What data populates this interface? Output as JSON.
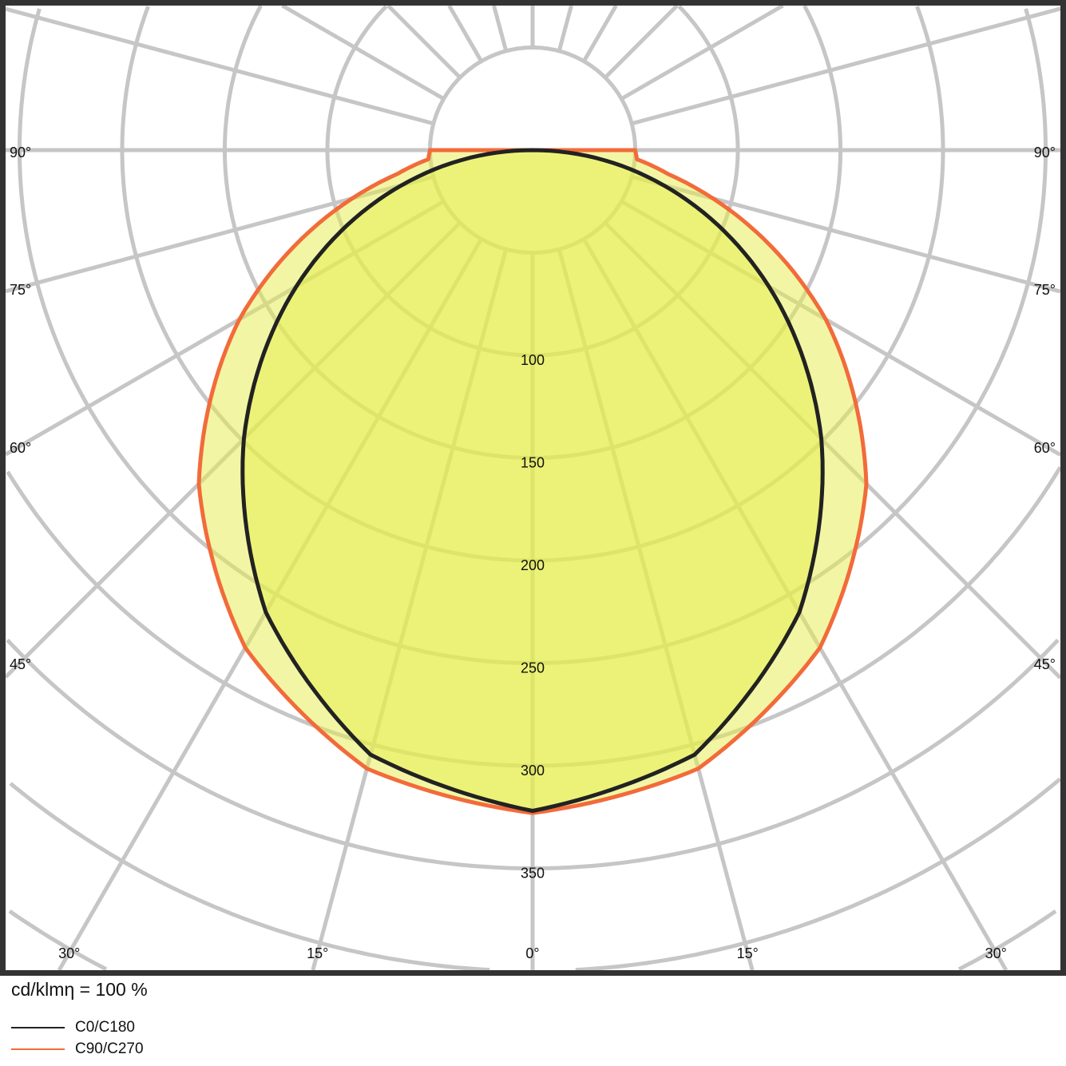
{
  "chart_data": {
    "type": "polar",
    "unit_label": "cd/klmη = 100 %",
    "radial_ticks": [
      100,
      150,
      200,
      250,
      300,
      350
    ],
    "radial_grid_step": 50,
    "radial_max": 500,
    "angle_ticks": [
      {
        "angle": -90,
        "label": "90°"
      },
      {
        "angle": 90,
        "label": "90°"
      },
      {
        "angle": -75,
        "label": "75°"
      },
      {
        "angle": 75,
        "label": "75°"
      },
      {
        "angle": -60,
        "label": "60°"
      },
      {
        "angle": 60,
        "label": "60°"
      },
      {
        "angle": -45,
        "label": "45°"
      },
      {
        "angle": 45,
        "label": "45°"
      },
      {
        "angle": -30,
        "label": "30°"
      },
      {
        "angle": 30,
        "label": "30°"
      },
      {
        "angle": -15,
        "label": "15°"
      },
      {
        "angle": 15,
        "label": "15°"
      },
      {
        "angle": 0,
        "label": "0°"
      }
    ],
    "grid": true,
    "legend_placement": "bottom-left",
    "series": [
      {
        "name": "C90/C270",
        "color": "#f26b3a",
        "angles": [
          0,
          15,
          30,
          45,
          60,
          75,
          80,
          85,
          90
        ],
        "values": [
          323,
          312,
          280,
          230,
          165,
          91,
          67,
          51,
          50
        ]
      },
      {
        "name": "C0/C180",
        "color": "#222222",
        "angles": [
          0,
          15,
          30,
          45,
          60,
          75,
          80,
          85,
          90
        ],
        "values": [
          322,
          305,
          260,
          199,
          133,
          66,
          44,
          22,
          0
        ]
      }
    ],
    "fill_color": "#e6ee4a"
  }
}
